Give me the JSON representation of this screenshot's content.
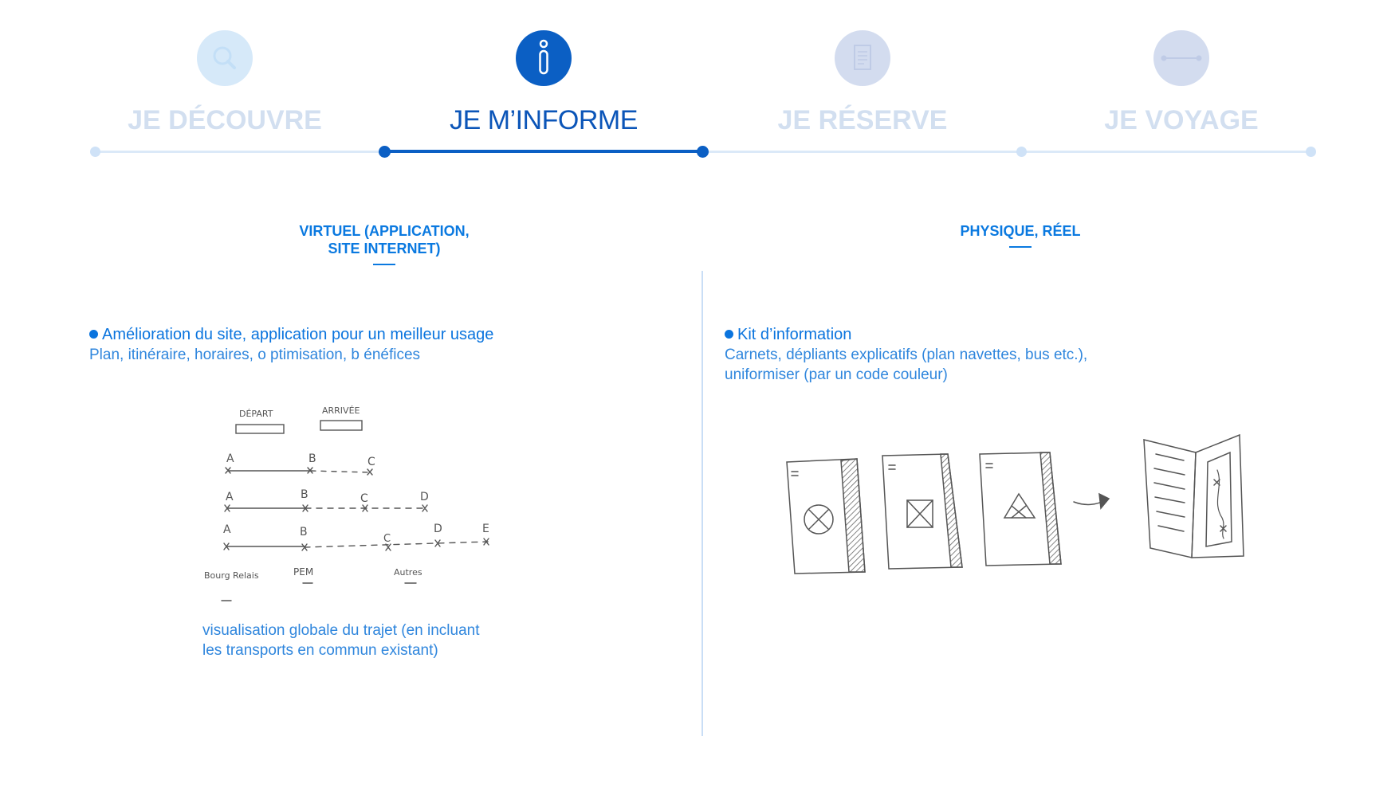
{
  "steps": [
    {
      "label": "JE DÉCOUVRE",
      "icon": "search-icon",
      "state": "inactive"
    },
    {
      "label": "JE M’INFORME",
      "icon": "info-icon",
      "state": "active"
    },
    {
      "label": "JE RÉSERVE",
      "icon": "document-icon",
      "state": "inactive"
    },
    {
      "label": "JE VOYAGE",
      "icon": "route-icon",
      "state": "inactive"
    }
  ],
  "left": {
    "header_line1": "VIRTUEL (APPLICATION,",
    "header_line2": "SITE INTERNET)",
    "bullet_title": "Amélioration du site, application pour un meilleur usage",
    "bullet_body": "Plan, itinéraire, horaires, o ptimisation, b énéfices",
    "sketch_labels": {
      "depart": "DÉPART",
      "arrivee": "ARRIVÉE",
      "a": "A",
      "b": "B",
      "c": "C",
      "d": "D",
      "e": "E",
      "bourg_relais": "Bourg Relais",
      "pem": "PEM",
      "autres": "Autres"
    },
    "caption_line1": "visualisation globale du trajet (en incluant",
    "caption_line2": "les transports en commun existant)"
  },
  "right": {
    "header": "PHYSIQUE, RÉEL",
    "bullet_title": "Kit d’information",
    "bullet_body_line1": "Carnets, dépliants explicatifs (plan navettes, bus etc.),",
    "bullet_body_line2": "uniformiser (par un code couleur)"
  },
  "colors": {
    "primary": "#0b5fc4",
    "accent": "#0a79e0",
    "inactive": "#d2dff0"
  }
}
